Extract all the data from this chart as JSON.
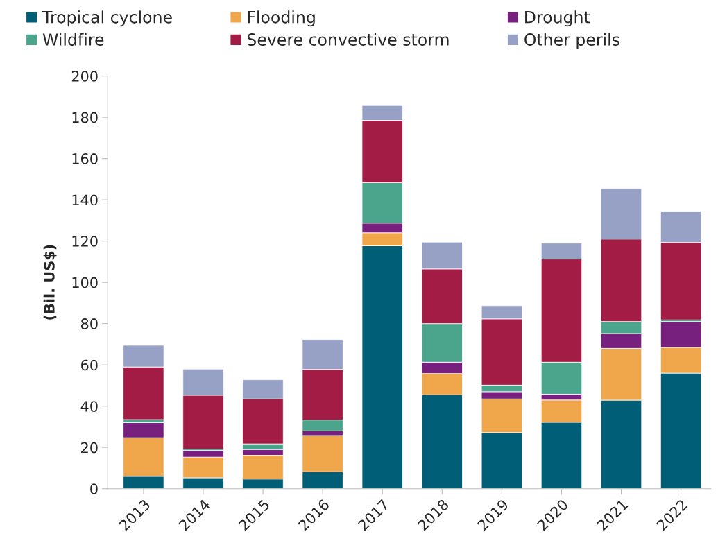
{
  "chart_data": {
    "type": "bar",
    "stacked": true,
    "ylabel": "(Bil. US$)",
    "categories": [
      "2013",
      "2014",
      "2015",
      "2016",
      "2017",
      "2018",
      "2019",
      "2020",
      "2021",
      "2022"
    ],
    "series": [
      {
        "name": "Tropical cyclone",
        "color": "#005e76",
        "values": [
          6,
          5.3,
          4.7,
          8.2,
          117.7,
          45.5,
          27.2,
          32.2,
          42.9,
          56
        ]
      },
      {
        "name": "Flooding",
        "color": "#f0a64a",
        "values": [
          18.7,
          10,
          11.5,
          17.6,
          6.3,
          10.3,
          16.3,
          10.8,
          25.1,
          12.5
        ]
      },
      {
        "name": "Drought",
        "color": "#78207e",
        "values": [
          7.3,
          3.2,
          2.8,
          2.2,
          4.7,
          5.5,
          3.5,
          2.8,
          7.2,
          12.5
        ]
      },
      {
        "name": "Wildfire",
        "color": "#4aa58c",
        "values": [
          1.5,
          0.7,
          2.7,
          5.3,
          19.6,
          18.7,
          3.2,
          15.5,
          5.8,
          0.8
        ]
      },
      {
        "name": "Severe convective storm",
        "color": "#a21c45",
        "values": [
          25.5,
          26.1,
          21.8,
          24.5,
          30.2,
          26.5,
          32.1,
          50,
          40,
          37.5
        ]
      },
      {
        "name": "Other perils",
        "color": "#97a1c5",
        "values": [
          10.5,
          12.7,
          9.3,
          14.5,
          7.2,
          13,
          6.4,
          7.7,
          24.5,
          15.2
        ]
      }
    ],
    "ylim": [
      0,
      200
    ],
    "yticks": [
      0,
      20,
      40,
      60,
      80,
      100,
      120,
      140,
      160,
      180,
      200
    ],
    "grid": false,
    "legend": "top"
  }
}
